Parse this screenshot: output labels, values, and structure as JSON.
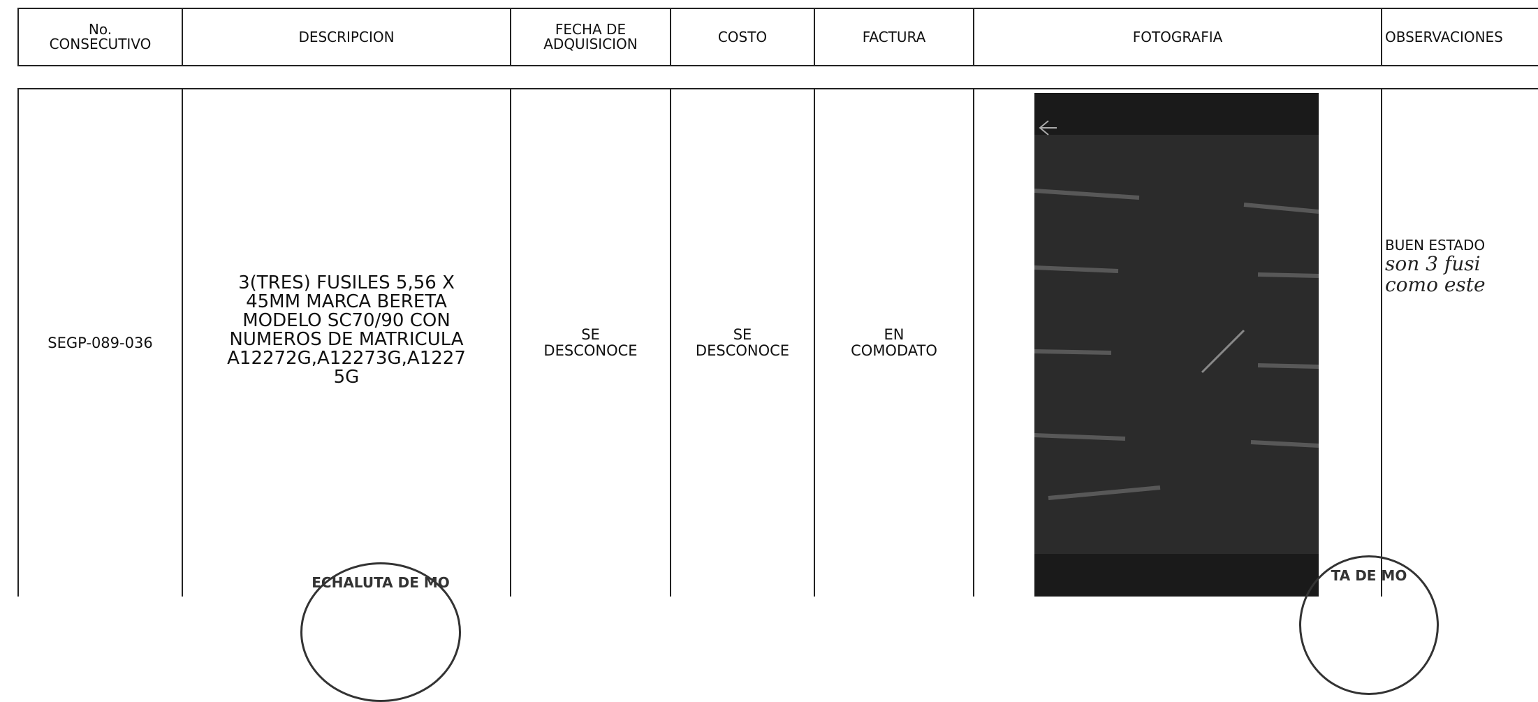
{
  "table": {
    "header": [
      "No.\nCONSECUTIVO",
      "DESCRIPCION",
      "FECHA DE\nADQUISICION",
      "COSTO",
      "FACTURA",
      "FOTOGRAFIA",
      "OBSERVACIONES"
    ],
    "rows": [
      {
        "consecutivo": "SEGP-089-036",
        "descripcion": [
          "3(TRES) FUSILES 5,56 X",
          "45MM MARCA BERETA",
          "MODELO SC70/90 CON",
          "NUMEROS DE MATRICULA",
          "A12272G,A12273G,A1227",
          "5G"
        ],
        "fecha": "SE\nDESCONOCE",
        "costo": "SE\nDESCONOCE",
        "factura": "EN\nCOMODATO",
        "observaciones": "BUEN ESTADO",
        "handwritten": [
          "son 3 fusi",
          "como este"
        ]
      }
    ]
  },
  "stamps": [
    "ECHALUTA DE MO",
    "TA DE MO"
  ]
}
